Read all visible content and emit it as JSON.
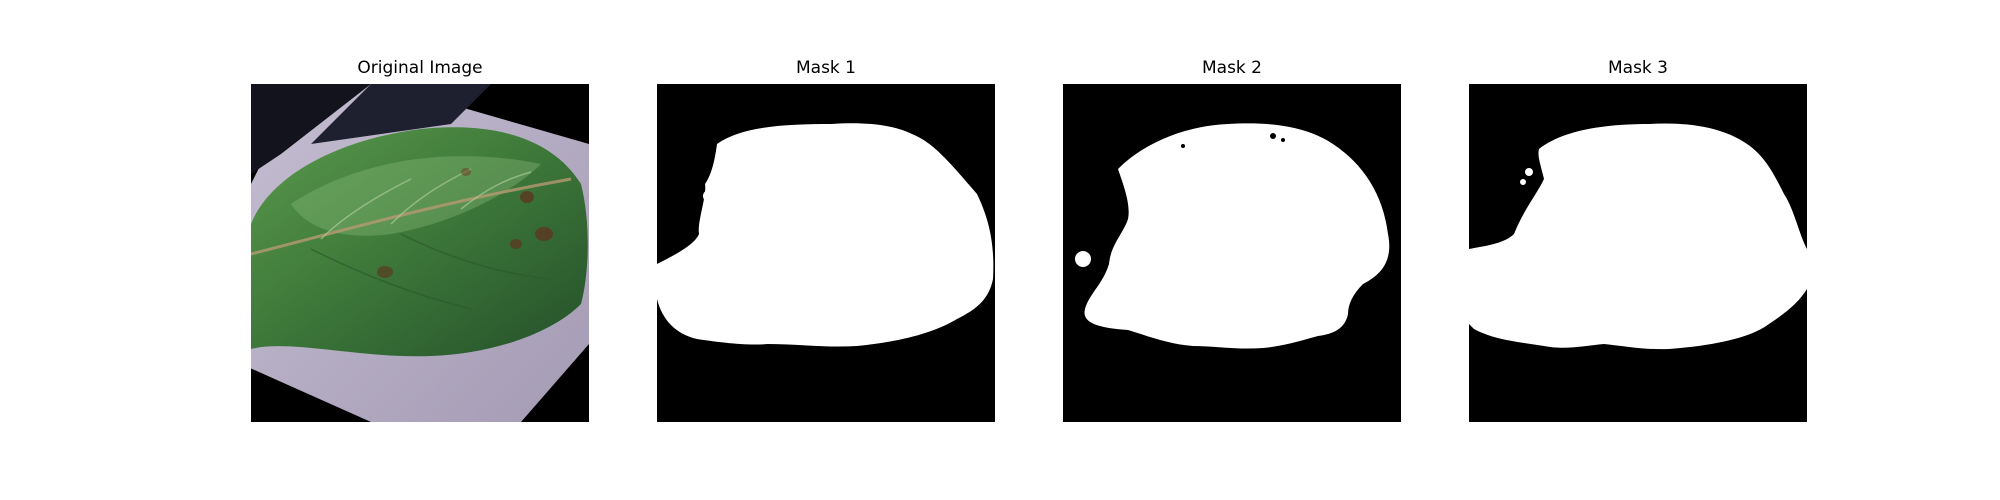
{
  "figure": {
    "panels": [
      {
        "title": "Original Image",
        "kind": "leaf-photo"
      },
      {
        "title": "Mask 1",
        "kind": "binary-mask"
      },
      {
        "title": "Mask 2",
        "kind": "binary-mask"
      },
      {
        "title": "Mask 3",
        "kind": "binary-mask"
      }
    ],
    "colors": {
      "background": "#ffffff",
      "mask_background": "#000000",
      "mask_foreground": "#ffffff",
      "leaf_green": "#3f7a3a",
      "paper": "#b8b0c4",
      "dark_corner": "#1e2030"
    }
  }
}
